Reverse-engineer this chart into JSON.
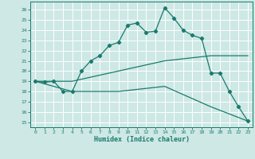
{
  "xlabel": "Humidex (Indice chaleur)",
  "bg_color": "#cde8e5",
  "line_color": "#1a7a6e",
  "grid_color": "#b0d8d4",
  "xlim": [
    -0.5,
    23.5
  ],
  "ylim": [
    14.5,
    26.8
  ],
  "xticks": [
    0,
    1,
    2,
    3,
    4,
    5,
    6,
    7,
    8,
    9,
    10,
    11,
    12,
    13,
    14,
    15,
    16,
    17,
    18,
    19,
    20,
    21,
    22,
    23
  ],
  "yticks": [
    15,
    16,
    17,
    18,
    19,
    20,
    21,
    22,
    23,
    24,
    25,
    26
  ],
  "line1_x": [
    0,
    1,
    2,
    3,
    4,
    5,
    6,
    7,
    8,
    9,
    10,
    11,
    12,
    13,
    14,
    15,
    16,
    17,
    18,
    19,
    20,
    21,
    22,
    23
  ],
  "line1_y": [
    19.0,
    18.9,
    19.0,
    18.0,
    18.0,
    20.0,
    21.0,
    21.5,
    22.5,
    22.8,
    24.5,
    24.7,
    23.8,
    23.9,
    26.2,
    25.2,
    24.0,
    23.5,
    23.2,
    19.8,
    19.8,
    18.0,
    16.5,
    15.1
  ],
  "line2_x": [
    0,
    4,
    9,
    14,
    19,
    23
  ],
  "line2_y": [
    19.0,
    19.0,
    20.0,
    21.0,
    21.5,
    21.5
  ],
  "line3_x": [
    0,
    4,
    9,
    14,
    19,
    23
  ],
  "line3_y": [
    19.0,
    18.0,
    18.0,
    18.5,
    16.5,
    15.1
  ]
}
